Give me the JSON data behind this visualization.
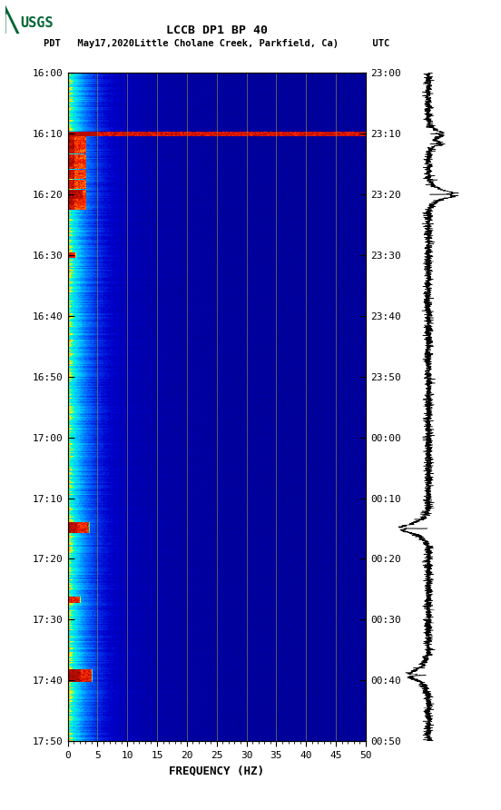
{
  "title_line1": "LCCB DP1 BP 40",
  "title_line2": "PDT   May17,2020Little Cholane Creek, Parkfield, Ca)      UTC",
  "xlabel": "FREQUENCY (HZ)",
  "freq_min": 0,
  "freq_max": 50,
  "yticks_pdt": [
    "16:00",
    "16:10",
    "16:20",
    "16:30",
    "16:40",
    "16:50",
    "17:00",
    "17:10",
    "17:20",
    "17:30",
    "17:40",
    "17:50"
  ],
  "yticks_utc": [
    "23:00",
    "23:10",
    "23:20",
    "23:30",
    "23:40",
    "23:50",
    "00:00",
    "00:10",
    "00:20",
    "00:30",
    "00:40",
    "00:50"
  ],
  "xticks": [
    0,
    5,
    10,
    15,
    20,
    25,
    30,
    35,
    40,
    45,
    50
  ],
  "vgrid_lines": [
    5,
    10,
    15,
    20,
    25,
    30,
    35,
    40,
    45
  ],
  "background_color": "#ffffff",
  "usgs_green": "#006633",
  "cmap_colors": [
    [
      0.0,
      "#00008B"
    ],
    [
      0.12,
      "#0000CD"
    ],
    [
      0.25,
      "#0066FF"
    ],
    [
      0.4,
      "#00CCFF"
    ],
    [
      0.55,
      "#00FFCC"
    ],
    [
      0.65,
      "#FFFF00"
    ],
    [
      0.78,
      "#FF8800"
    ],
    [
      0.88,
      "#FF2200"
    ],
    [
      1.0,
      "#880000"
    ]
  ],
  "n_time": 660,
  "n_freq": 500,
  "seed": 12345
}
